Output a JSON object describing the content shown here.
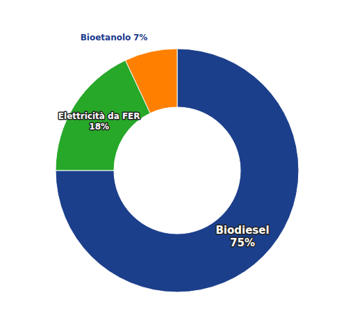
{
  "chart_data": {
    "type": "donut",
    "categories": [
      "Biodiesel",
      "Elettricità da FER",
      "Bioetanolo"
    ],
    "values": [
      75,
      18,
      7
    ],
    "value_labels": [
      "75%",
      "18%",
      "7%"
    ],
    "colors": [
      "#1c3f8c",
      "#27a829",
      "#ff8000"
    ],
    "data_labels": true
  }
}
